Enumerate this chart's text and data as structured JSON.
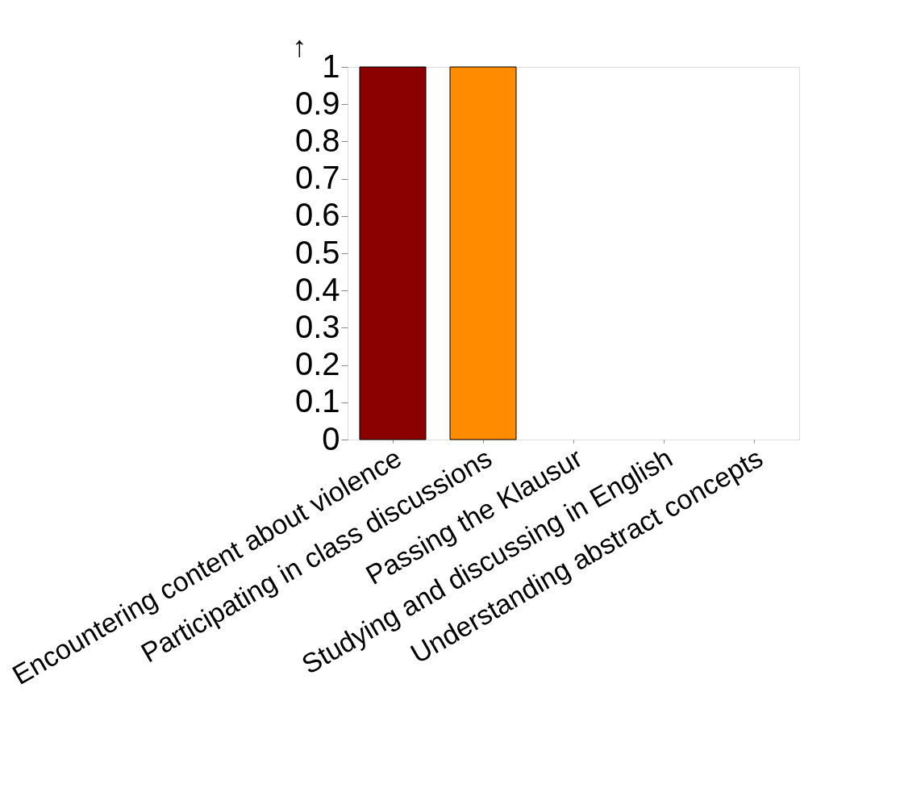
{
  "chart_data": {
    "type": "bar",
    "ylabel": "↑",
    "categories": [
      "Encountering content about violence",
      "Participating in class discussions",
      "Passing the Klausur",
      "Studying and discussing in English",
      "Understanding abstract concepts"
    ],
    "values": [
      1,
      1,
      null,
      null,
      null
    ],
    "colors": [
      "#8b0000",
      "#ff8c00",
      "#1f77b4",
      "#2ca02c",
      "#9467bd"
    ],
    "ylim": [
      0,
      1
    ],
    "yticks": [
      0,
      0.1,
      0.2,
      0.3,
      0.4,
      0.5,
      0.6,
      0.7,
      0.8,
      0.9,
      1
    ],
    "grid": false
  }
}
